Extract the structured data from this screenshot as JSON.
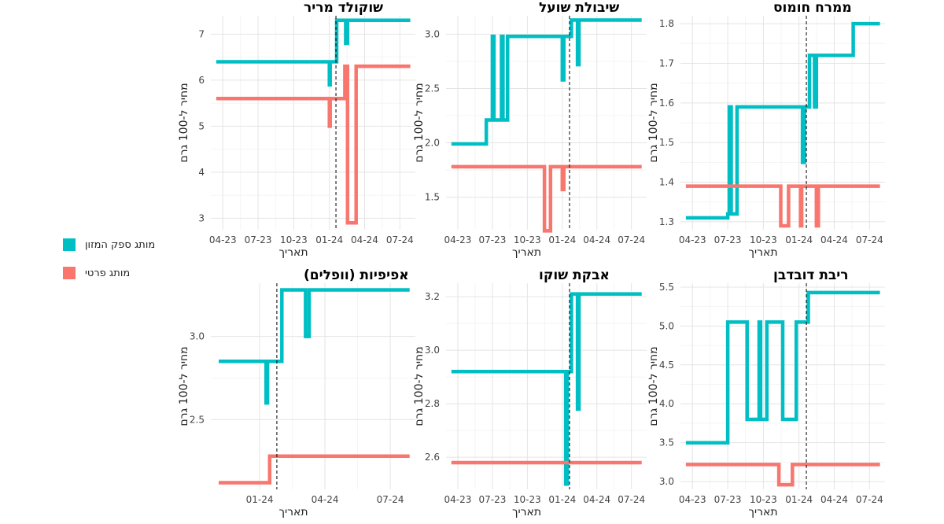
{
  "legend": {
    "items": [
      {
        "label": "מותג ספק המזון",
        "color": "#00BFC4"
      },
      {
        "label": "מותג פרטי",
        "color": "#F8766D"
      }
    ]
  },
  "chart_data": [
    {
      "type": "line",
      "title": "שוקולד מריר",
      "xlabel": "תאריך",
      "ylabel": "מחיר ל-100 גרם",
      "x_ticks": [
        "04-23",
        "07-23",
        "10-23",
        "01-24",
        "04-24",
        "07-24"
      ],
      "y_ticks": [
        3,
        4,
        5,
        6,
        7
      ],
      "xlim": [
        "2023-03-01",
        "2024-08-10"
      ],
      "ylim": [
        2.75,
        7.4
      ],
      "vline": "2024-01-18",
      "series": [
        {
          "name": "מותג ספק המזון",
          "color": "#00BFC4",
          "points": [
            [
              "2023-03-15",
              6.4
            ],
            [
              "2024-01-01",
              6.4
            ],
            [
              "2024-01-01",
              5.9
            ],
            [
              "2024-01-03",
              5.9
            ],
            [
              "2024-01-03",
              6.4
            ],
            [
              "2024-01-20",
              6.4
            ],
            [
              "2024-01-20",
              7.3
            ],
            [
              "2024-02-12",
              7.3
            ],
            [
              "2024-02-12",
              6.8
            ],
            [
              "2024-02-17",
              6.8
            ],
            [
              "2024-02-17",
              7.3
            ],
            [
              "2024-07-28",
              7.3
            ]
          ]
        },
        {
          "name": "מותג פרטי",
          "color": "#F8766D",
          "points": [
            [
              "2023-03-15",
              5.6
            ],
            [
              "2024-01-01",
              5.6
            ],
            [
              "2024-01-01",
              5.0
            ],
            [
              "2024-01-03",
              5.0
            ],
            [
              "2024-01-03",
              5.6
            ],
            [
              "2024-02-10",
              5.6
            ],
            [
              "2024-02-10",
              6.3
            ],
            [
              "2024-02-17",
              6.3
            ],
            [
              "2024-02-17",
              2.9
            ],
            [
              "2024-03-10",
              2.9
            ],
            [
              "2024-03-10",
              6.3
            ],
            [
              "2024-07-28",
              6.3
            ]
          ]
        }
      ]
    },
    {
      "type": "line",
      "title": "שיבולת שועל",
      "xlabel": "תאריך",
      "ylabel": "מחיר ל-100 גרם",
      "x_ticks": [
        "04-23",
        "07-23",
        "10-23",
        "01-24",
        "04-24",
        "07-24"
      ],
      "y_ticks": [
        1.5,
        2.0,
        2.5,
        3.0
      ],
      "xlim": [
        "2023-03-01",
        "2024-08-10"
      ],
      "ylim": [
        1.2,
        3.17
      ],
      "vline": "2024-01-20",
      "series": [
        {
          "name": "מותג ספק המזון",
          "color": "#00BFC4",
          "points": [
            [
              "2023-03-15",
              1.99
            ],
            [
              "2023-06-15",
              1.99
            ],
            [
              "2023-06-15",
              2.21
            ],
            [
              "2023-07-01",
              2.21
            ],
            [
              "2023-07-01",
              2.98
            ],
            [
              "2023-07-05",
              2.98
            ],
            [
              "2023-07-05",
              2.21
            ],
            [
              "2023-07-25",
              2.21
            ],
            [
              "2023-07-25",
              2.98
            ],
            [
              "2023-07-29",
              2.98
            ],
            [
              "2023-07-29",
              2.21
            ],
            [
              "2023-08-10",
              2.21
            ],
            [
              "2023-08-10",
              2.98
            ],
            [
              "2024-01-01",
              2.98
            ],
            [
              "2024-01-01",
              2.58
            ],
            [
              "2024-01-05",
              2.58
            ],
            [
              "2024-01-05",
              2.98
            ],
            [
              "2024-01-25",
              2.98
            ],
            [
              "2024-01-25",
              3.13
            ],
            [
              "2024-02-10",
              3.13
            ],
            [
              "2024-02-10",
              2.72
            ],
            [
              "2024-02-14",
              2.72
            ],
            [
              "2024-02-14",
              3.13
            ],
            [
              "2024-07-28",
              3.13
            ]
          ]
        },
        {
          "name": "מותג פרטי",
          "color": "#F8766D",
          "points": [
            [
              "2023-03-15",
              1.78
            ],
            [
              "2023-11-15",
              1.78
            ],
            [
              "2023-11-15",
              1.19
            ],
            [
              "2023-12-01",
              1.19
            ],
            [
              "2023-12-01",
              1.78
            ],
            [
              "2024-01-01",
              1.78
            ],
            [
              "2024-01-01",
              1.57
            ],
            [
              "2024-01-05",
              1.57
            ],
            [
              "2024-01-05",
              1.78
            ],
            [
              "2024-07-28",
              1.78
            ]
          ]
        }
      ]
    },
    {
      "type": "line",
      "title": "ממרח חומוס",
      "xlabel": "תאריך",
      "ylabel": "מחיר ל-100 גרם",
      "x_ticks": [
        "04-23",
        "07-23",
        "10-23",
        "01-24",
        "04-24",
        "07-24"
      ],
      "y_ticks": [
        1.3,
        1.4,
        1.5,
        1.6,
        1.7,
        1.8
      ],
      "xlim": [
        "2023-03-01",
        "2024-08-10"
      ],
      "ylim": [
        1.28,
        1.82
      ],
      "vline": "2024-01-20",
      "series": [
        {
          "name": "מותג ספק המזון",
          "color": "#00BFC4",
          "points": [
            [
              "2023-03-15",
              1.31
            ],
            [
              "2023-07-01",
              1.31
            ],
            [
              "2023-07-01",
              1.32
            ],
            [
              "2023-07-05",
              1.32
            ],
            [
              "2023-07-05",
              1.59
            ],
            [
              "2023-07-10",
              1.59
            ],
            [
              "2023-07-10",
              1.32
            ],
            [
              "2023-07-25",
              1.32
            ],
            [
              "2023-07-25",
              1.59
            ],
            [
              "2024-01-10",
              1.59
            ],
            [
              "2024-01-10",
              1.45
            ],
            [
              "2024-01-15",
              1.45
            ],
            [
              "2024-01-15",
              1.59
            ],
            [
              "2024-01-28",
              1.59
            ],
            [
              "2024-01-28",
              1.72
            ],
            [
              "2024-02-10",
              1.72
            ],
            [
              "2024-02-10",
              1.59
            ],
            [
              "2024-02-15",
              1.59
            ],
            [
              "2024-02-15",
              1.72
            ],
            [
              "2024-05-20",
              1.72
            ],
            [
              "2024-05-20",
              1.8
            ],
            [
              "2024-07-28",
              1.8
            ]
          ]
        },
        {
          "name": "מותג פרטי",
          "color": "#F8766D",
          "points": [
            [
              "2023-03-15",
              1.39
            ],
            [
              "2023-11-15",
              1.39
            ],
            [
              "2023-11-15",
              1.29
            ],
            [
              "2023-12-05",
              1.29
            ],
            [
              "2023-12-05",
              1.39
            ],
            [
              "2024-01-05",
              1.39
            ],
            [
              "2024-01-05",
              1.29
            ],
            [
              "2024-01-08",
              1.29
            ],
            [
              "2024-01-08",
              1.39
            ],
            [
              "2024-02-15",
              1.39
            ],
            [
              "2024-02-15",
              1.29
            ],
            [
              "2024-02-20",
              1.29
            ],
            [
              "2024-02-20",
              1.39
            ],
            [
              "2024-07-28",
              1.39
            ]
          ]
        }
      ]
    },
    {
      "type": "line",
      "title": "אפיפיות (וופלים)",
      "xlabel": "תאריך",
      "ylabel": "מחיר ל-100 גרם",
      "x_ticks": [
        "01-24",
        "04-24",
        "07-24"
      ],
      "y_ticks": [
        2.5,
        3.0
      ],
      "xlim": [
        "2023-10-25",
        "2024-08-05"
      ],
      "ylim": [
        2.08,
        3.32
      ],
      "vline": "2024-01-25",
      "series": [
        {
          "name": "מותג ספק המזון",
          "color": "#00BFC4",
          "points": [
            [
              "2023-11-05",
              2.85
            ],
            [
              "2024-01-10",
              2.85
            ],
            [
              "2024-01-10",
              2.6
            ],
            [
              "2024-01-12",
              2.6
            ],
            [
              "2024-01-12",
              2.85
            ],
            [
              "2024-02-01",
              2.85
            ],
            [
              "2024-02-01",
              3.28
            ],
            [
              "2024-03-05",
              3.28
            ],
            [
              "2024-03-05",
              3.0
            ],
            [
              "2024-03-10",
              3.0
            ],
            [
              "2024-03-10",
              3.28
            ],
            [
              "2024-07-28",
              3.28
            ]
          ]
        },
        {
          "name": "מותג פרטי",
          "color": "#F8766D",
          "points": [
            [
              "2023-11-05",
              2.12
            ],
            [
              "2024-01-15",
              2.12
            ],
            [
              "2024-01-15",
              2.28
            ],
            [
              "2024-07-28",
              2.28
            ]
          ]
        }
      ]
    },
    {
      "type": "line",
      "title": "אבקת שוקו",
      "xlabel": "תאריך",
      "ylabel": "מחיר ל-100 גרם",
      "x_ticks": [
        "04-23",
        "07-23",
        "10-23",
        "01-24",
        "04-24",
        "07-24"
      ],
      "y_ticks": [
        2.6,
        2.8,
        3.0,
        3.2
      ],
      "xlim": [
        "2023-03-01",
        "2024-08-10"
      ],
      "ylim": [
        2.48,
        3.25
      ],
      "vline": "2024-01-20",
      "series": [
        {
          "name": "מותג ספק המזון",
          "color": "#00BFC4",
          "points": [
            [
              "2023-03-15",
              2.92
            ],
            [
              "2024-01-10",
              2.92
            ],
            [
              "2024-01-10",
              2.5
            ],
            [
              "2024-01-14",
              2.5
            ],
            [
              "2024-01-14",
              2.92
            ],
            [
              "2024-01-25",
              2.92
            ],
            [
              "2024-01-25",
              3.21
            ],
            [
              "2024-02-10",
              3.21
            ],
            [
              "2024-02-10",
              2.78
            ],
            [
              "2024-02-14",
              2.78
            ],
            [
              "2024-02-14",
              3.21
            ],
            [
              "2024-07-28",
              3.21
            ]
          ]
        },
        {
          "name": "מותג פרטי",
          "color": "#F8766D",
          "points": [
            [
              "2023-03-15",
              2.58
            ],
            [
              "2024-07-28",
              2.58
            ]
          ]
        }
      ]
    },
    {
      "type": "line",
      "title": "ריבת דובדבן",
      "xlabel": "תאריך",
      "ylabel": "מחיר ל-100 גרם",
      "x_ticks": [
        "04-23",
        "07-23",
        "10-23",
        "01-24",
        "04-24",
        "07-24"
      ],
      "y_ticks": [
        3.0,
        3.5,
        4.0,
        4.5,
        5.0,
        5.5
      ],
      "xlim": [
        "2023-03-01",
        "2024-08-10"
      ],
      "ylim": [
        2.9,
        5.55
      ],
      "vline": "2024-01-20",
      "series": [
        {
          "name": "מותג ספק המזון",
          "color": "#00BFC4",
          "points": [
            [
              "2023-03-15",
              3.5
            ],
            [
              "2023-07-01",
              3.5
            ],
            [
              "2023-07-01",
              5.05
            ],
            [
              "2023-08-20",
              5.05
            ],
            [
              "2023-08-20",
              3.8
            ],
            [
              "2023-09-20",
              3.8
            ],
            [
              "2023-09-20",
              5.05
            ],
            [
              "2023-09-24",
              5.05
            ],
            [
              "2023-09-24",
              3.8
            ],
            [
              "2023-10-10",
              3.8
            ],
            [
              "2023-10-10",
              5.05
            ],
            [
              "2023-11-20",
              5.05
            ],
            [
              "2023-11-20",
              3.8
            ],
            [
              "2023-12-25",
              3.8
            ],
            [
              "2023-12-25",
              5.05
            ],
            [
              "2024-01-25",
              5.05
            ],
            [
              "2024-01-25",
              5.43
            ],
            [
              "2024-07-28",
              5.43
            ]
          ]
        },
        {
          "name": "מותג פרטי",
          "color": "#F8766D",
          "points": [
            [
              "2023-03-15",
              3.22
            ],
            [
              "2023-11-10",
              3.22
            ],
            [
              "2023-11-10",
              2.96
            ],
            [
              "2023-12-15",
              2.96
            ],
            [
              "2023-12-15",
              3.22
            ],
            [
              "2024-07-28",
              3.22
            ]
          ]
        }
      ]
    }
  ]
}
